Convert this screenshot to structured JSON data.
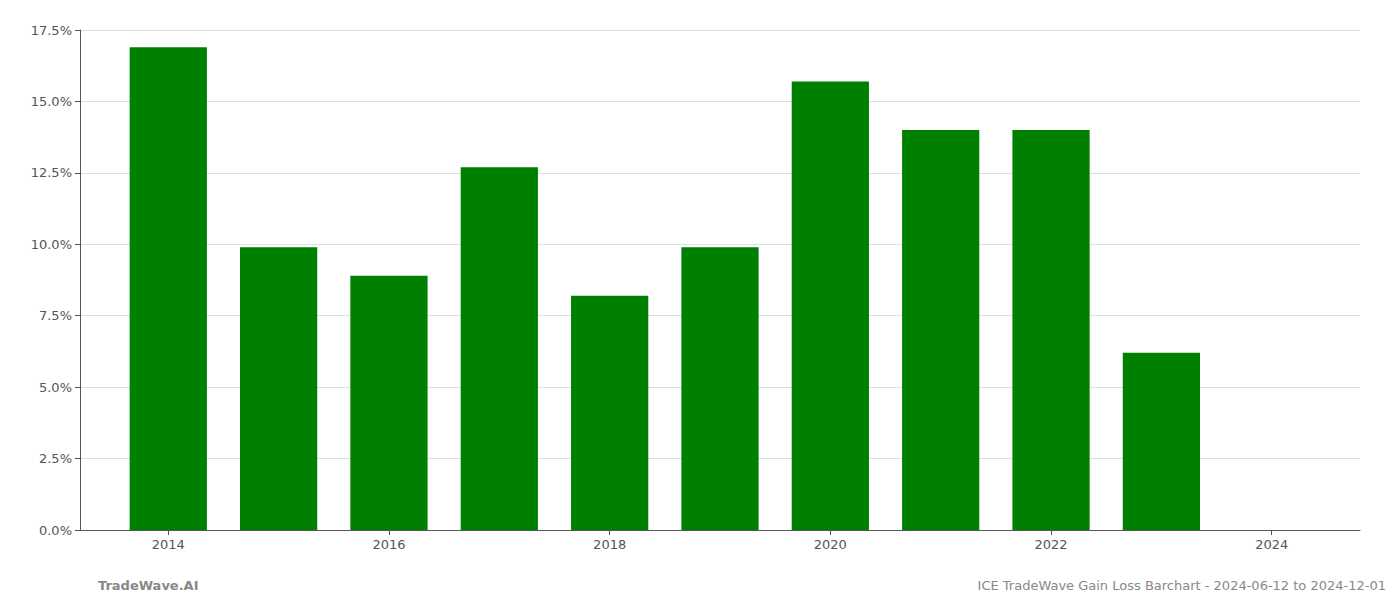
{
  "chart_data": {
    "type": "bar",
    "x": [
      2014,
      2015,
      2016,
      2017,
      2018,
      2019,
      2020,
      2021,
      2022,
      2023
    ],
    "values": [
      0.169,
      0.099,
      0.089,
      0.127,
      0.082,
      0.099,
      0.157,
      0.14,
      0.14,
      0.062
    ],
    "color": "#008000",
    "xlim": [
      2013.2,
      2024.8
    ],
    "xticks": [
      2014,
      2016,
      2018,
      2020,
      2022,
      2024
    ],
    "ylim": [
      0.0,
      0.175
    ],
    "yticks": [
      {
        "value": 0.0,
        "label": "0.0%"
      },
      {
        "value": 0.025,
        "label": "2.5%"
      },
      {
        "value": 0.05,
        "label": "5.0%"
      },
      {
        "value": 0.075,
        "label": "7.5%"
      },
      {
        "value": 0.1,
        "label": "10.0%"
      },
      {
        "value": 0.125,
        "label": "12.5%"
      },
      {
        "value": 0.15,
        "label": "15.0%"
      },
      {
        "value": 0.175,
        "label": "17.5%"
      }
    ],
    "grid": true,
    "annotations": [
      "TradeWave.AI",
      "ICE TradeWave Gain Loss Barchart - 2024-06-12 to 2024-12-01"
    ]
  }
}
